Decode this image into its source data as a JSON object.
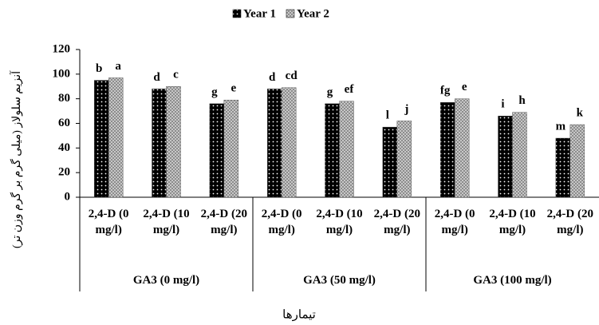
{
  "chart_data": {
    "type": "bar",
    "y_label": "آنزیم سلولاز (میلی گرم بر گرم وزن تر)",
    "x_label": "تیمارها",
    "categories": [
      "2,4-D (0 mg/l)",
      "2,4-D (10 mg/l)",
      "2,4-D (20 mg/l)",
      "2,4-D (0 mg/l)",
      "2,4-D (10 mg/l)",
      "2,4-D (20 mg/l)",
      "2,4-D (0 mg/l)",
      "2,4-D (10 mg/l)",
      "2,4-D (20 mg/l)"
    ],
    "groups": [
      "GA3 (0 mg/l)",
      "GA3 (50 mg/l)",
      "GA3 (100 mg/l)"
    ],
    "series": [
      {
        "name": "Year 1",
        "color": "#000000",
        "values": [
          95,
          88,
          76,
          88,
          76,
          57,
          77,
          66,
          48
        ],
        "letters": [
          "b",
          "d",
          "g",
          "d",
          "g",
          "l",
          "fg",
          "i",
          "m"
        ]
      },
      {
        "name": "Year 2",
        "color": "#d0d0d0",
        "values": [
          97,
          90,
          79,
          89,
          78,
          62,
          80,
          69,
          59
        ],
        "letters": [
          "a",
          "c",
          "e",
          "cd",
          "ef",
          "j",
          "e",
          "h",
          "k"
        ]
      }
    ],
    "ylim": [
      0,
      120
    ],
    "yticks": [
      0,
      20,
      40,
      60,
      80,
      100,
      120
    ],
    "grid": false,
    "legend": "top"
  }
}
